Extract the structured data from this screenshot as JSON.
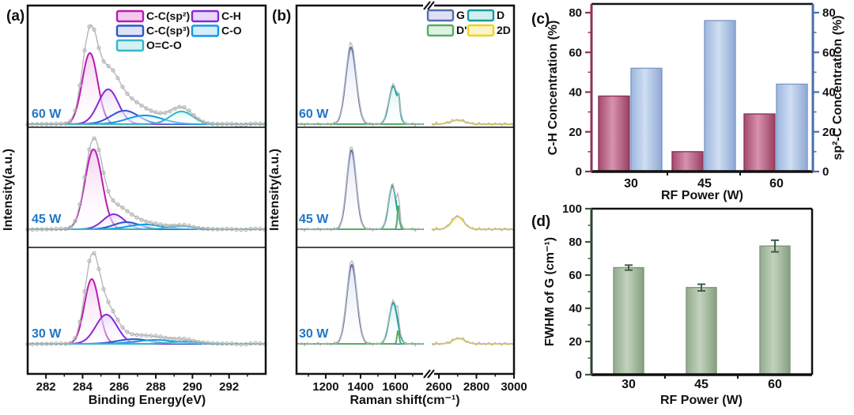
{
  "chart_data": [
    {
      "id": "a",
      "panel_label": "(a)",
      "type": "line",
      "kind": "xps-fitted-spectra",
      "xlabel": "Binding Energy(eV)",
      "ylabel": "Intensity(a.u.)",
      "xlim": [
        281,
        294
      ],
      "xticks": [
        282,
        284,
        286,
        288,
        290,
        292
      ],
      "xminor": [
        283,
        285,
        287,
        289,
        291,
        293
      ],
      "series_label_color": "#2176c7",
      "envelope_color": "#b2b2b2",
      "components": {
        "C-C(sp²)": {
          "color": "#b81cb0",
          "tint": "#f3c9ee"
        },
        "C-H": {
          "color": "#8729d8",
          "tint": "#e7d7f8"
        },
        "C-C(sp³)": {
          "color": "#2f55cc",
          "tint": "#dde4f8"
        },
        "C-O": {
          "color": "#1499e6",
          "tint": "#d8edfb"
        },
        "O=C-O": {
          "color": "#30b8c8",
          "tint": "#d5f1f4"
        }
      },
      "legend": [
        "C-C(sp²)",
        "C-H",
        "C-C(sp³)",
        "C-O",
        "O=C-O"
      ],
      "spectra": [
        {
          "label": "60 W",
          "env_scale": 1.25,
          "peaks": [
            [
              "C-C(sp³)",
              286.3,
              17,
              0.75
            ],
            [
              "C-O",
              287.4,
              11,
              0.95
            ],
            [
              "O=C-O",
              289.4,
              16,
              0.62
            ],
            [
              "C-H",
              285.4,
              44,
              0.55
            ],
            [
              "C-C(sp²)",
              284.4,
              90,
              0.42
            ]
          ]
        },
        {
          "label": "45 W",
          "env_scale": 1.1,
          "peaks": [
            [
              "C-C(sp³)",
              286.4,
              9,
              0.7
            ],
            [
              "C-O",
              287.4,
              6,
              0.9
            ],
            [
              "O=C-O",
              289.4,
              4,
              0.7
            ],
            [
              "C-H",
              285.7,
              19,
              0.58
            ],
            [
              "C-C(sp²)",
              284.6,
              101,
              0.47
            ]
          ]
        },
        {
          "label": "30 W",
          "env_scale": 1.18,
          "peaks": [
            [
              "C-C(sp³)",
              286.8,
              6,
              0.9
            ],
            [
              "C-O",
              288.0,
              5,
              1.1
            ],
            [
              "O=C-O",
              289.6,
              3,
              0.8
            ],
            [
              "C-H",
              285.3,
              37,
              0.58
            ],
            [
              "C-C(sp²)",
              284.5,
              82,
              0.4
            ]
          ]
        }
      ]
    },
    {
      "id": "b",
      "panel_label": "(b)",
      "type": "line",
      "kind": "raman-fitted-spectra",
      "xlabel": "Raman shift(cm⁻¹)",
      "ylabel": "Intensity(a.u.)",
      "axis_break": true,
      "x_segments": [
        [
          1032,
          1764
        ],
        [
          2562,
          3000
        ]
      ],
      "xticks": [
        1200,
        1400,
        1600,
        2600,
        2800,
        3000
      ],
      "xminor": [
        1100,
        1300,
        1500,
        1700,
        2700,
        2900
      ],
      "series_label_color": "#2176c7",
      "envelope_color": "#b9b9b9",
      "components": {
        "G": {
          "color": "#5b6cad",
          "tint": "#dde1f1"
        },
        "D": {
          "color": "#169c9f",
          "tint": "#d4eeee"
        },
        "D'": {
          "color": "#55ad62",
          "tint": "#e0f2e1"
        },
        "2D": {
          "color": "#f0d313",
          "tint": "#fcf5cb"
        }
      },
      "legend": [
        "G",
        "D",
        "D'",
        "2D"
      ],
      "segment_components": [
        [
          "2D",
          "G",
          "D",
          "D'"
        ],
        [
          "2D"
        ]
      ],
      "spectra": [
        {
          "label": "60 W",
          "env_scale": 1.06,
          "peaks": [
            [
              "G",
              1345,
              97,
              30
            ],
            [
              "D",
              1588,
              48,
              25
            ],
            [
              "D",
              1620,
              16,
              6
            ],
            [
              "2D",
              2700,
              5,
              38
            ]
          ]
        },
        {
          "label": "45 W",
          "env_scale": 1.05,
          "peaks": [
            [
              "G",
              1348,
              100,
              27
            ],
            [
              "D",
              1583,
              55,
              22
            ],
            [
              "D'",
              1619,
              30,
              6.5
            ],
            [
              "2D",
              2700,
              16,
              32
            ]
          ]
        },
        {
          "label": "30 W",
          "env_scale": 1.06,
          "peaks": [
            [
              "G",
              1350,
              100,
              29
            ],
            [
              "D",
              1588,
              52,
              24
            ],
            [
              "D'",
              1616,
              17,
              6
            ],
            [
              "2D",
              2706,
              7,
              32
            ]
          ]
        }
      ]
    },
    {
      "id": "c",
      "panel_label": "(c)",
      "type": "bar",
      "categories": [
        "30",
        "45",
        "60"
      ],
      "xlabel": "RF Power (W)",
      "series": [
        {
          "name": "C-H Concentration (%)",
          "axis": "left",
          "values": [
            38,
            10,
            29
          ],
          "fill": [
            "#a34a6e",
            "#d792ad",
            "#9a3f63"
          ],
          "edge": "#8e3359"
        },
        {
          "name": "sp²-C Concentration (%)",
          "axis": "right",
          "values": [
            52,
            76,
            44
          ],
          "fill": [
            "#9cb6de",
            "#cfdef2",
            "#8fa9d4"
          ],
          "edge": "#7e9ac6"
        }
      ],
      "left_axis": {
        "label": "C-H Concentration (%)",
        "color": "#8e3359",
        "ylim": [
          0,
          84
        ],
        "ticks": [
          0,
          20,
          40,
          60,
          80
        ],
        "minor_step": 10
      },
      "right_axis": {
        "label": "sp²-C Concentration (%)",
        "color": "#4a6fa8",
        "ylim": [
          0,
          84
        ],
        "ticks": [
          0,
          20,
          40,
          60,
          80
        ],
        "minor_step": 10
      }
    },
    {
      "id": "d",
      "panel_label": "(d)",
      "type": "bar",
      "categories": [
        "30",
        "45",
        "60"
      ],
      "xlabel": "RF Power (W)",
      "ylabel": "FWHM of G (cm⁻¹)",
      "values": [
        64.5,
        52.5,
        77.5
      ],
      "errors": [
        1.5,
        2,
        3.5
      ],
      "ylim": [
        0,
        100
      ],
      "yticks": [
        0,
        20,
        40,
        60,
        80,
        100
      ],
      "minor_step": 10,
      "bar_fill": [
        "#93ab8e",
        "#c2d2bd",
        "#86a07f"
      ],
      "bar_edge": "#7d9a78",
      "error_color": "#3f5e45",
      "axis_color": "#3c5a40"
    }
  ]
}
